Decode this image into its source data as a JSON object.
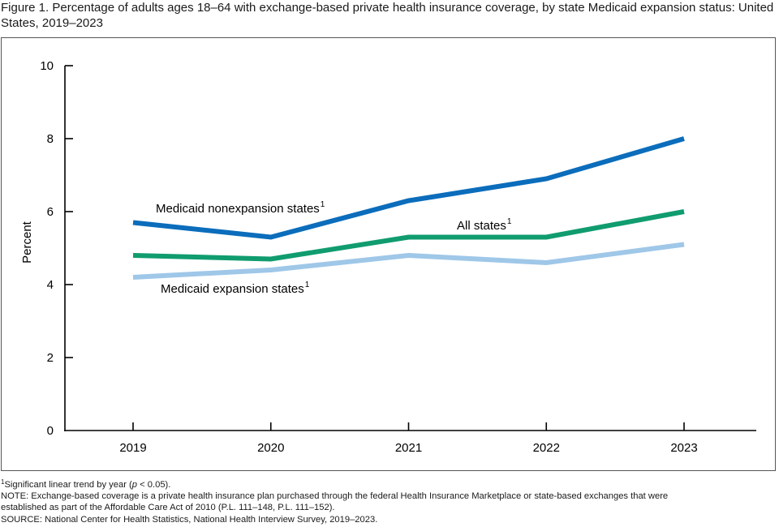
{
  "title": "Figure 1. Percentage of adults ages 18–64 with exchange-based private health insurance coverage, by state Medicaid expansion status: United States, 2019–2023",
  "chart_data": {
    "type": "line",
    "title": "Figure 1. Percentage of adults ages 18–64 with exchange-based private health insurance coverage, by state Medicaid expansion status: United States, 2019–2023",
    "xlabel": "",
    "ylabel": "Percent",
    "x": [
      "2019",
      "2020",
      "2021",
      "2022",
      "2023"
    ],
    "ylim": [
      0,
      10
    ],
    "yticks": [
      "0",
      "2",
      "4",
      "6",
      "8",
      "10"
    ],
    "grid": false,
    "series": [
      {
        "key": "nonexpansion",
        "name": "Medicaid nonexpansion states",
        "footnote_marker": "1",
        "color": "#0b6dbb",
        "values": [
          5.7,
          5.3,
          6.3,
          6.9,
          8.0
        ]
      },
      {
        "key": "all",
        "name": "All states",
        "footnote_marker": "1",
        "color": "#109c6f",
        "values": [
          4.8,
          4.7,
          5.3,
          5.3,
          6.0
        ]
      },
      {
        "key": "expansion",
        "name": "Medicaid expansion states",
        "footnote_marker": "1",
        "color": "#9fc7e8",
        "values": [
          4.2,
          4.4,
          4.8,
          4.6,
          5.1
        ]
      }
    ]
  },
  "notes": {
    "footnote_marker": "1",
    "footnote_pre": "Significant linear trend by year (",
    "footnote_p": "p",
    "footnote_post": " < 0.05).",
    "note_line1": "NOTE: Exchange-based coverage is a private health insurance plan purchased through the federal Health Insurance Marketplace or state-based exchanges that were",
    "note_line2": "established as part of the Affordable Care Act of 2010 (P.L. 111–148, P.L. 111–152).",
    "source": "SOURCE: National Center for Health Statistics, National Health Interview Survey, 2019–2023."
  }
}
